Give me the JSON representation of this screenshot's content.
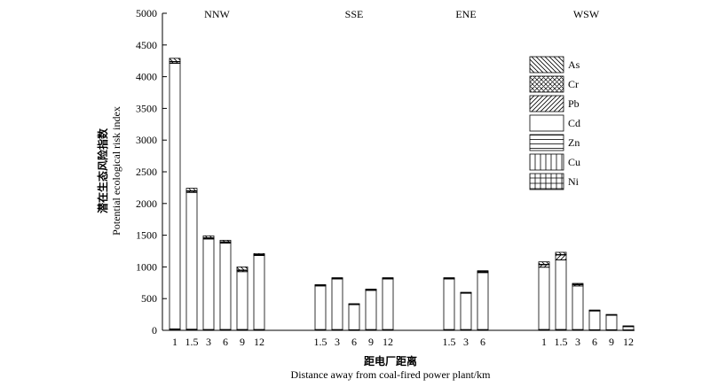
{
  "chart_data": {
    "type": "bar",
    "stacked": true,
    "ylim": [
      0,
      5000
    ],
    "yticks": [
      0,
      500,
      1000,
      1500,
      2000,
      2500,
      3000,
      3500,
      4000,
      4500,
      5000
    ],
    "ylabel_zh": "潜在生态风险指数",
    "ylabel_en": "Potential ecological risk index",
    "xlabel_zh": "距电厂距离",
    "xlabel_en": "Distance away from coal-fired power plant/km",
    "legend_position": "right",
    "grid": false,
    "components": [
      "As",
      "Cr",
      "Pb",
      "Cd",
      "Zn",
      "Cu",
      "Ni"
    ],
    "groups": [
      {
        "name": "NNW",
        "bars": [
          {
            "label": "1",
            "total": 4290,
            "values": {
              "Ni": 8,
              "Cu": 10,
              "Zn": 5,
              "Cd": 4187,
              "Pb": 25,
              "Cr": 5,
              "As": 50
            }
          },
          {
            "label": "1.5",
            "total": 2240,
            "values": {
              "Ni": 6,
              "Cu": 8,
              "Zn": 4,
              "Cd": 2157,
              "Pb": 20,
              "Cr": 5,
              "As": 40
            }
          },
          {
            "label": "3",
            "total": 1490,
            "values": {
              "Ni": 5,
              "Cu": 6,
              "Zn": 3,
              "Cd": 1426,
              "Pb": 15,
              "Cr": 5,
              "As": 30
            }
          },
          {
            "label": "6",
            "total": 1420,
            "values": {
              "Ni": 5,
              "Cu": 6,
              "Zn": 3,
              "Cd": 1361,
              "Pb": 15,
              "Cr": 5,
              "As": 25
            }
          },
          {
            "label": "9",
            "total": 1000,
            "values": {
              "Ni": 5,
              "Cu": 6,
              "Zn": 3,
              "Cd": 911,
              "Pb": 20,
              "Cr": 5,
              "As": 50
            }
          },
          {
            "label": "12",
            "total": 1210,
            "values": {
              "Ni": 5,
              "Cu": 6,
              "Zn": 3,
              "Cd": 1166,
              "Pb": 10,
              "Cr": 5,
              "As": 15
            }
          }
        ]
      },
      {
        "name": "SSE",
        "bars": [
          {
            "label": "1.5",
            "total": 720,
            "values": {
              "Ni": 5,
              "Cu": 5,
              "Zn": 3,
              "Cd": 687,
              "Pb": 8,
              "Cr": 4,
              "As": 8
            }
          },
          {
            "label": "3",
            "total": 830,
            "values": {
              "Ni": 5,
              "Cu": 5,
              "Zn": 3,
              "Cd": 797,
              "Pb": 8,
              "Cr": 4,
              "As": 8
            }
          },
          {
            "label": "6",
            "total": 420,
            "values": {
              "Ni": 4,
              "Cu": 4,
              "Zn": 2,
              "Cd": 396,
              "Pb": 6,
              "Cr": 3,
              "As": 5
            }
          },
          {
            "label": "9",
            "total": 650,
            "values": {
              "Ni": 5,
              "Cu": 5,
              "Zn": 3,
              "Cd": 617,
              "Pb": 8,
              "Cr": 4,
              "As": 8
            }
          },
          {
            "label": "12",
            "total": 830,
            "values": {
              "Ni": 5,
              "Cu": 5,
              "Zn": 3,
              "Cd": 797,
              "Pb": 8,
              "Cr": 4,
              "As": 8
            }
          }
        ]
      },
      {
        "name": "ENE",
        "bars": [
          {
            "label": "1.5",
            "total": 830,
            "values": {
              "Ni": 5,
              "Cu": 5,
              "Zn": 3,
              "Cd": 797,
              "Pb": 8,
              "Cr": 4,
              "As": 8
            }
          },
          {
            "label": "3",
            "total": 600,
            "values": {
              "Ni": 5,
              "Cu": 5,
              "Zn": 3,
              "Cd": 572,
              "Pb": 6,
              "Cr": 3,
              "As": 6
            }
          },
          {
            "label": "6",
            "total": 940,
            "values": {
              "Ni": 5,
              "Cu": 5,
              "Zn": 3,
              "Cd": 897,
              "Pb": 12,
              "Cr": 5,
              "As": 13
            }
          }
        ]
      },
      {
        "name": "WSW",
        "bars": [
          {
            "label": "1",
            "total": 1080,
            "values": {
              "Ni": 5,
              "Cu": 6,
              "Zn": 3,
              "Cd": 981,
              "Pb": 40,
              "Cr": 5,
              "As": 40
            }
          },
          {
            "label": "1.5",
            "total": 1230,
            "values": {
              "Ni": 5,
              "Cu": 6,
              "Zn": 3,
              "Cd": 1096,
              "Pb": 80,
              "Cr": 5,
              "As": 35
            }
          },
          {
            "label": "3",
            "total": 740,
            "values": {
              "Ni": 5,
              "Cu": 5,
              "Zn": 3,
              "Cd": 687,
              "Pb": 20,
              "Cr": 5,
              "As": 15
            }
          },
          {
            "label": "6",
            "total": 320,
            "values": {
              "Ni": 4,
              "Cu": 4,
              "Zn": 2,
              "Cd": 295,
              "Pb": 6,
              "Cr": 3,
              "As": 6
            }
          },
          {
            "label": "9",
            "total": 250,
            "values": {
              "Ni": 4,
              "Cu": 4,
              "Zn": 2,
              "Cd": 230,
              "Pb": 4,
              "Cr": 3,
              "As": 3
            }
          },
          {
            "label": "12",
            "total": 70,
            "values": {
              "Ni": 3,
              "Cu": 3,
              "Zn": 2,
              "Cd": 52,
              "Pb": 4,
              "Cr": 3,
              "As": 3
            }
          }
        ]
      }
    ]
  }
}
